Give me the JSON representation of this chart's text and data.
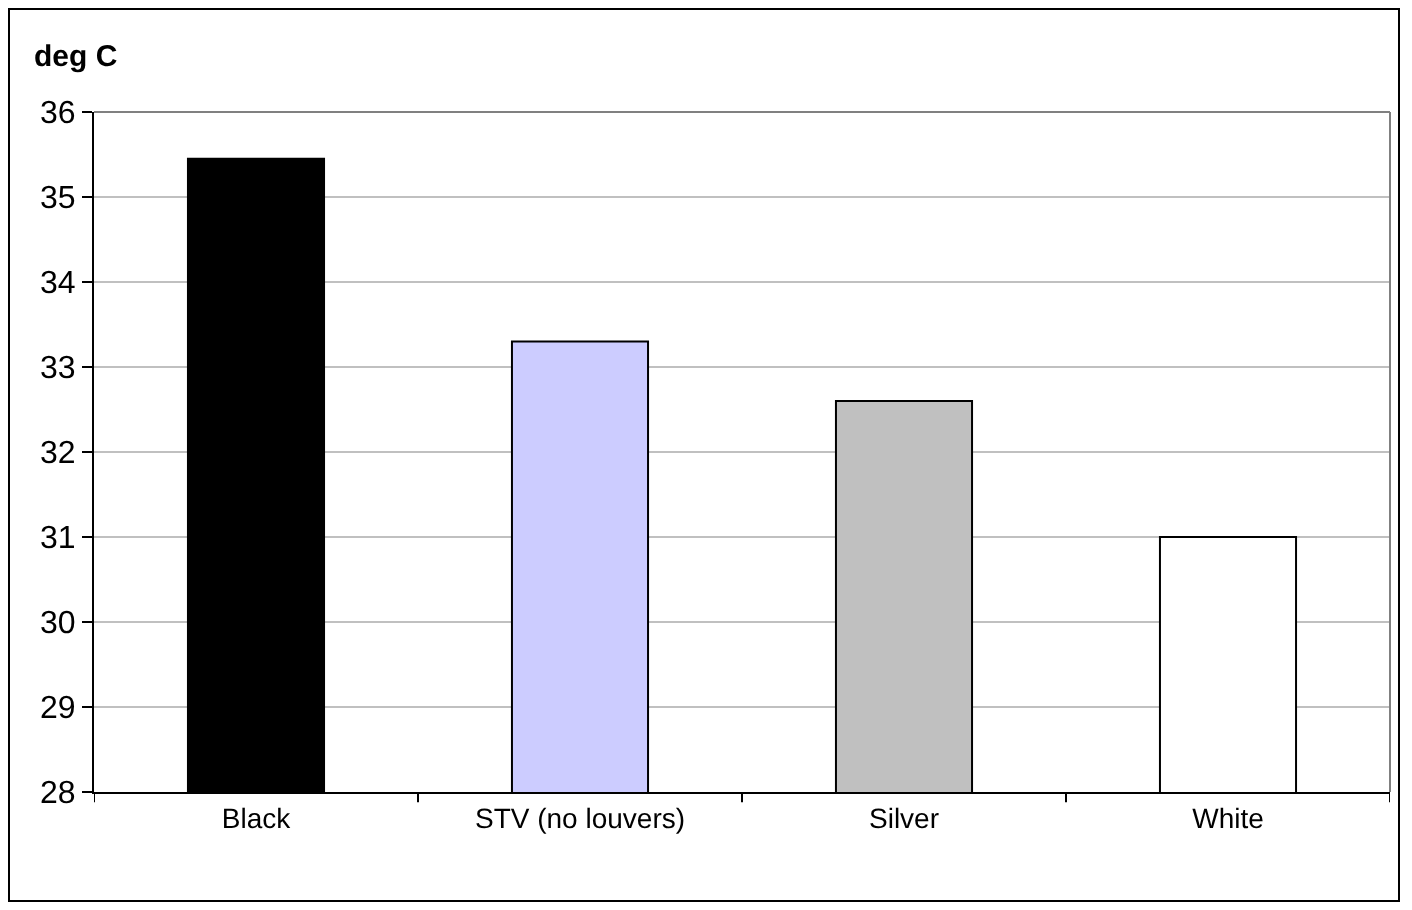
{
  "chart_data": {
    "type": "bar",
    "ylabel": "deg C",
    "categories": [
      "Black",
      "STV (no louvers)",
      "Silver",
      "White"
    ],
    "values": [
      35.45,
      33.3,
      32.6,
      31.0
    ],
    "colors": [
      "#000000",
      "#ccccff",
      "#c0c0c0",
      "#ffffff"
    ],
    "ylim": [
      28,
      36
    ],
    "yticks": [
      28,
      29,
      30,
      31,
      32,
      33,
      34,
      35,
      36
    ],
    "grid": "y"
  }
}
